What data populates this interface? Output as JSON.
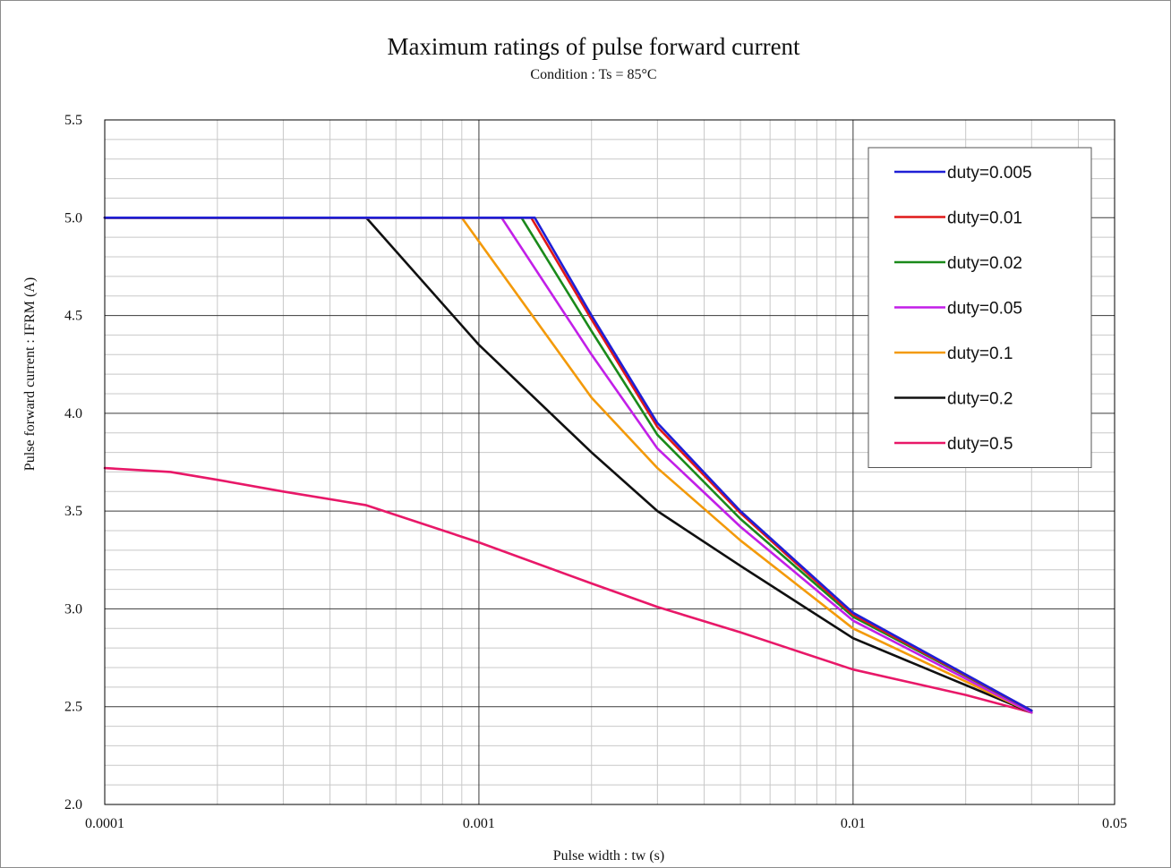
{
  "chart_data": {
    "type": "line",
    "title": "Maximum ratings of pulse forward current",
    "subtitle": "Condition : Ts = 85°C",
    "xlabel": "Pulse width : tw (s)",
    "ylabel": "Pulse forward current : IFRM (A)",
    "x_scale": "log",
    "xlim": [
      0.0001,
      0.05
    ],
    "ylim": [
      2.0,
      5.5
    ],
    "x_ticks": [
      0.0001,
      0.001,
      0.01,
      0.05
    ],
    "x_tick_labels": [
      "0.0001",
      "0.001",
      "0.01",
      "0.05"
    ],
    "y_ticks": [
      2.0,
      2.5,
      3.0,
      3.5,
      4.0,
      4.5,
      5.0,
      5.5
    ],
    "y_tick_labels": [
      "2.0",
      "2.5",
      "3.0",
      "3.5",
      "4.0",
      "4.5",
      "5.0",
      "5.5"
    ],
    "grid": true,
    "legend_position": "top-right",
    "series": [
      {
        "name": "duty=0.005",
        "color": "#1f1fd6",
        "x": [
          0.0001,
          0.00141,
          0.002,
          0.003,
          0.005,
          0.01,
          0.03
        ],
        "y": [
          5.0,
          5.0,
          4.5,
          3.95,
          3.5,
          2.98,
          2.48
        ]
      },
      {
        "name": "duty=0.01",
        "color": "#e01818",
        "x": [
          0.0001,
          0.00138,
          0.002,
          0.003,
          0.005,
          0.01,
          0.03
        ],
        "y": [
          5.0,
          5.0,
          4.48,
          3.93,
          3.49,
          2.97,
          2.48
        ]
      },
      {
        "name": "duty=0.02",
        "color": "#1a8a1a",
        "x": [
          0.0001,
          0.0013,
          0.002,
          0.003,
          0.005,
          0.01,
          0.03
        ],
        "y": [
          5.0,
          5.0,
          4.42,
          3.89,
          3.46,
          2.96,
          2.48
        ]
      },
      {
        "name": "duty=0.05",
        "color": "#c21fe8",
        "x": [
          0.0001,
          0.00115,
          0.002,
          0.003,
          0.005,
          0.01,
          0.03
        ],
        "y": [
          5.0,
          5.0,
          4.3,
          3.82,
          3.42,
          2.94,
          2.47
        ]
      },
      {
        "name": "duty=0.1",
        "color": "#f39a0a",
        "x": [
          0.0001,
          0.0009,
          0.002,
          0.003,
          0.005,
          0.01,
          0.03
        ],
        "y": [
          5.0,
          5.0,
          4.08,
          3.72,
          3.35,
          2.9,
          2.47
        ]
      },
      {
        "name": "duty=0.2",
        "color": "#101010",
        "x": [
          0.0001,
          0.0005,
          0.001,
          0.002,
          0.003,
          0.005,
          0.01,
          0.03
        ],
        "y": [
          5.0,
          5.0,
          4.35,
          3.8,
          3.5,
          3.22,
          2.85,
          2.47
        ]
      },
      {
        "name": "duty=0.5",
        "color": "#e81868",
        "x": [
          0.0001,
          0.00015,
          0.0002,
          0.0003,
          0.0005,
          0.001,
          0.002,
          0.003,
          0.005,
          0.01,
          0.02,
          0.03
        ],
        "y": [
          3.72,
          3.7,
          3.66,
          3.6,
          3.53,
          3.34,
          3.13,
          3.01,
          2.88,
          2.69,
          2.56,
          2.47
        ]
      }
    ]
  }
}
